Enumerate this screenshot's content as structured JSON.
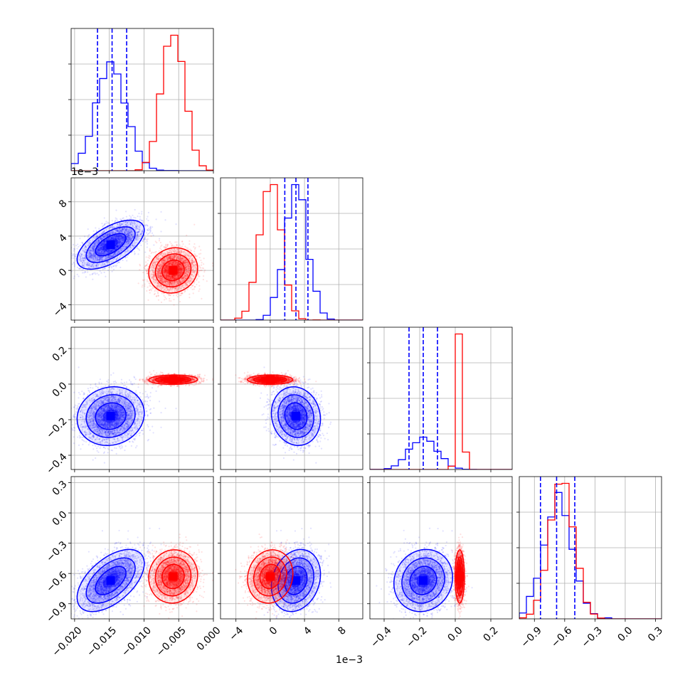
{
  "chart_data": {
    "type": "corner",
    "title": "",
    "grid": true,
    "colors": {
      "series_a": "#0000ff",
      "series_b": "#ff0000",
      "grid": "#b0b0b0",
      "axes": "#000000"
    },
    "parameters": [
      {
        "range": [
          -0.0205,
          0.0
        ],
        "ticks": [
          -0.02,
          -0.015,
          -0.01,
          -0.005,
          0.0
        ],
        "tick_labels": [
          "−0.020",
          "−0.015",
          "−0.010",
          "−0.005",
          "0.000"
        ],
        "offset_label": ""
      },
      {
        "range": [
          -5.8,
          10.8
        ],
        "ticks": [
          -4,
          0,
          4,
          8
        ],
        "tick_labels": [
          "−4",
          "0",
          "4",
          "8"
        ],
        "offset_label": "1e−3"
      },
      {
        "range": [
          -0.48,
          0.32
        ],
        "ticks": [
          -0.4,
          -0.2,
          0.0,
          0.2
        ],
        "tick_labels": [
          "−0.4",
          "−0.2",
          "0.0",
          "0.2"
        ],
        "offset_label": ""
      },
      {
        "range": [
          -1.05,
          0.36
        ],
        "ticks": [
          -0.9,
          -0.6,
          -0.3,
          0.0,
          0.3
        ],
        "tick_labels": [
          "−0.9",
          "−0.6",
          "−0.3",
          "0.0",
          "0.3"
        ],
        "offset_label": ""
      }
    ],
    "series": [
      {
        "color": "#0000ff",
        "mean": [
          -0.0148,
          3.0,
          -0.18,
          -0.67
        ],
        "std": [
          0.0022,
          1.3,
          0.075,
          0.14
        ],
        "corr": [
          [
            1,
            0.6,
            0.1,
            0.55
          ],
          [
            0.6,
            1,
            -0.1,
            0.2
          ],
          [
            0.1,
            -0.1,
            1,
            0.1
          ],
          [
            0.55,
            0.2,
            0.1,
            1
          ]
        ],
        "quantiles": [
          [
            -0.0167,
            -0.0146,
            -0.0125
          ],
          [
            1.7,
            3.0,
            4.4
          ],
          [
            -0.26,
            -0.18,
            -0.1
          ],
          [
            -0.84,
            -0.68,
            -0.5
          ]
        ]
      },
      {
        "color": "#ff0000",
        "mean": [
          -0.0058,
          0.0,
          0.025,
          -0.63
        ],
        "std": [
          0.0016,
          1.2,
          0.012,
          0.12
        ],
        "corr": [
          [
            1,
            0.1,
            0.05,
            0.05
          ],
          [
            0.1,
            1,
            0.0,
            0.1
          ],
          [
            0.05,
            0.0,
            1,
            0.0
          ],
          [
            0.05,
            0.1,
            0.0,
            1
          ]
        ],
        "quantiles": []
      }
    ]
  }
}
